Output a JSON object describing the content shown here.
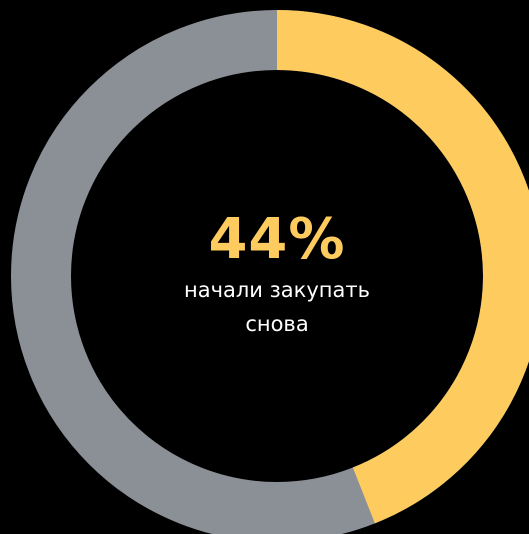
{
  "colors": {
    "background": "#000000",
    "highlight": "#FECB5E",
    "remainder": "#8B9096",
    "caption": "#FFFFFF"
  },
  "chart_data": {
    "type": "pie",
    "variant": "donut",
    "categories": [
      "начали закупать снова",
      ""
    ],
    "values": [
      44,
      56
    ],
    "center_value": "44%",
    "caption_lines": [
      "начали закупать",
      "снова"
    ],
    "direction": "clockwise",
    "start": "top"
  }
}
